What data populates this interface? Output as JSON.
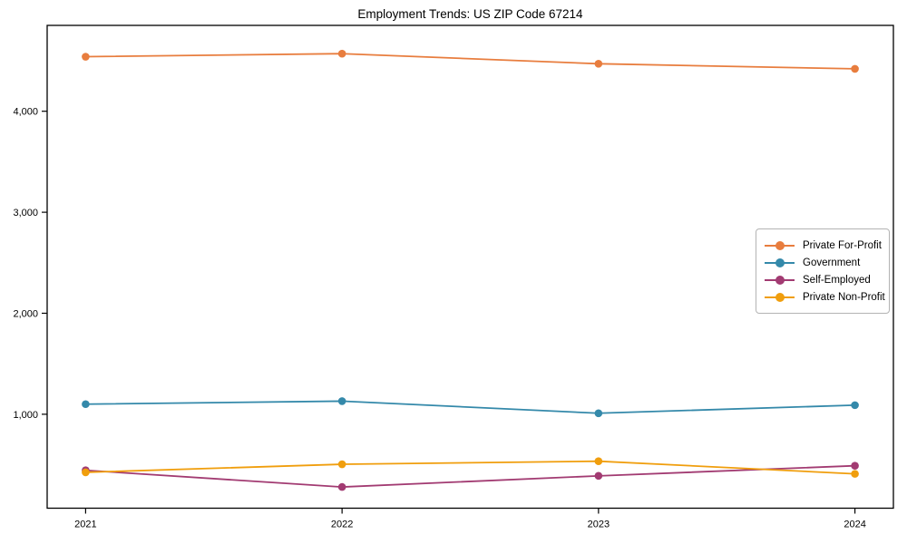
{
  "figure": {
    "background": "#ffffff",
    "axis_color": "#000000"
  },
  "chart_data": {
    "type": "line",
    "title": "Employment Trends: US ZIP Code 67214",
    "xlabel": "",
    "ylabel": "",
    "categories": [
      "2021",
      "2022",
      "2023",
      "2024"
    ],
    "x": [
      2021,
      2022,
      2023,
      2024
    ],
    "xlim": [
      2020.85,
      2024.15
    ],
    "ylim": [
      70,
      4850
    ],
    "yticks": [
      1000,
      2000,
      3000,
      4000
    ],
    "ytick_labels": [
      "1,000",
      "2,000",
      "3,000",
      "4,000"
    ],
    "grid": false,
    "legend_position": "center-right",
    "series": [
      {
        "name": "Private For-Profit",
        "color": "#e87d3e",
        "values": [
          4540,
          4570,
          4470,
          4420
        ]
      },
      {
        "name": "Government",
        "color": "#3489aa",
        "values": [
          1100,
          1130,
          1010,
          1090
        ]
      },
      {
        "name": "Self-Employed",
        "color": "#a23b72",
        "values": [
          445,
          280,
          390,
          490
        ]
      },
      {
        "name": "Private Non-Profit",
        "color": "#f09e0d",
        "values": [
          425,
          505,
          535,
          410
        ]
      }
    ]
  }
}
